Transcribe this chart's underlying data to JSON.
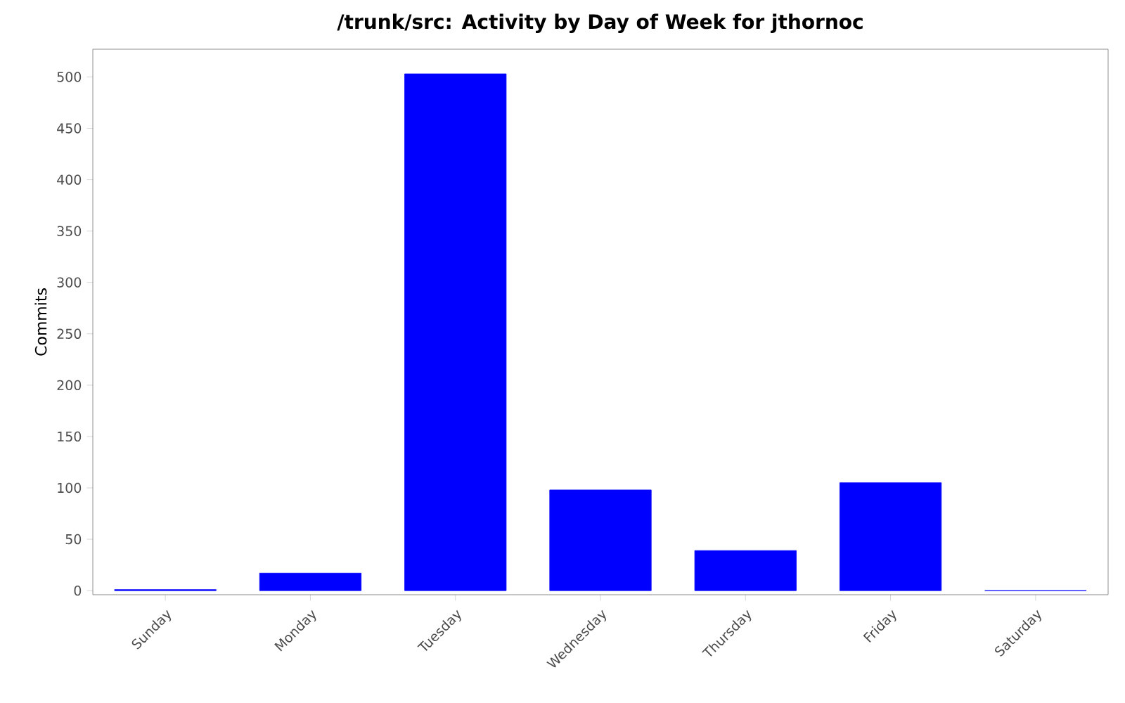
{
  "chart_data": {
    "type": "bar",
    "title": "/trunk/src: Activity by Day of Week for jthornoc",
    "ylabel": "Commits",
    "categories": [
      "Sunday",
      "Monday",
      "Tuesday",
      "Wednesday",
      "Thursday",
      "Friday",
      "Saturday"
    ],
    "values": [
      1,
      17,
      503,
      98,
      39,
      105,
      0
    ],
    "color": "#0000ff",
    "ylim": [
      -4,
      527
    ],
    "yticks": [
      0,
      50,
      100,
      150,
      200,
      250,
      300,
      350,
      400,
      450,
      500
    ]
  }
}
